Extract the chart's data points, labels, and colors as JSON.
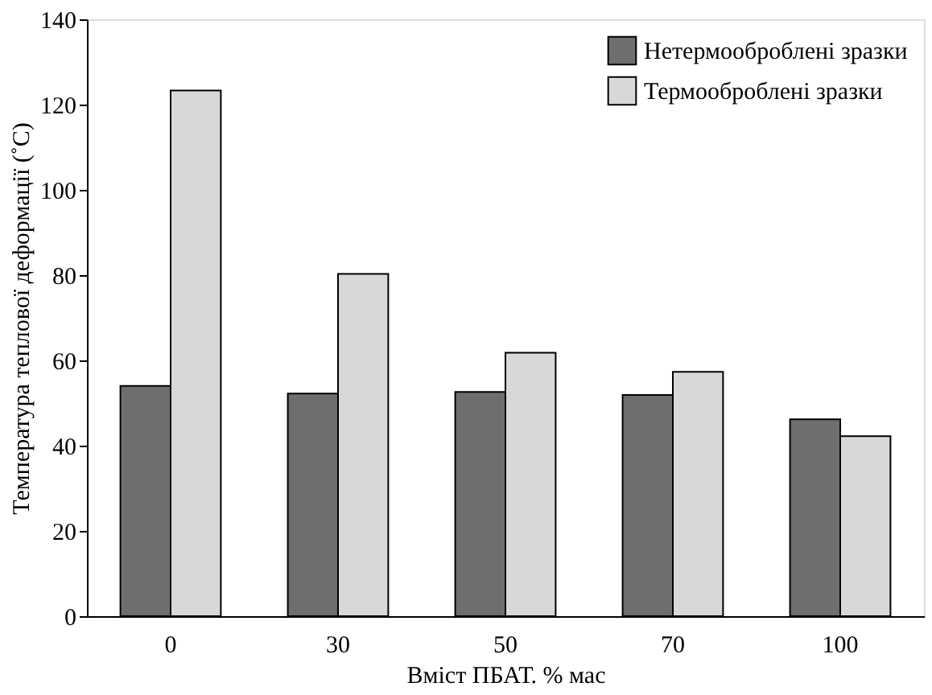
{
  "chart_data": {
    "type": "bar",
    "xlabel": "Вміст ПБАТ. % мас",
    "ylabel": "Температура теплової деформації (˚C)",
    "categories": [
      "0",
      "30",
      "50",
      "70",
      "100"
    ],
    "series": [
      {
        "name": "Нетермооброблені зразки",
        "color": "#6e6e6e",
        "values": [
          54,
          52.2,
          52.6,
          51.9,
          46.2
        ]
      },
      {
        "name": "Термооброблені зразки",
        "color": "#d8d8d8",
        "values": [
          123.3,
          80.3,
          61.8,
          57.3,
          42.2
        ]
      }
    ],
    "ylim": [
      0,
      140
    ],
    "yticks": [
      0,
      20,
      40,
      60,
      80,
      100,
      120,
      140
    ],
    "grid": false,
    "legend": "top right"
  }
}
